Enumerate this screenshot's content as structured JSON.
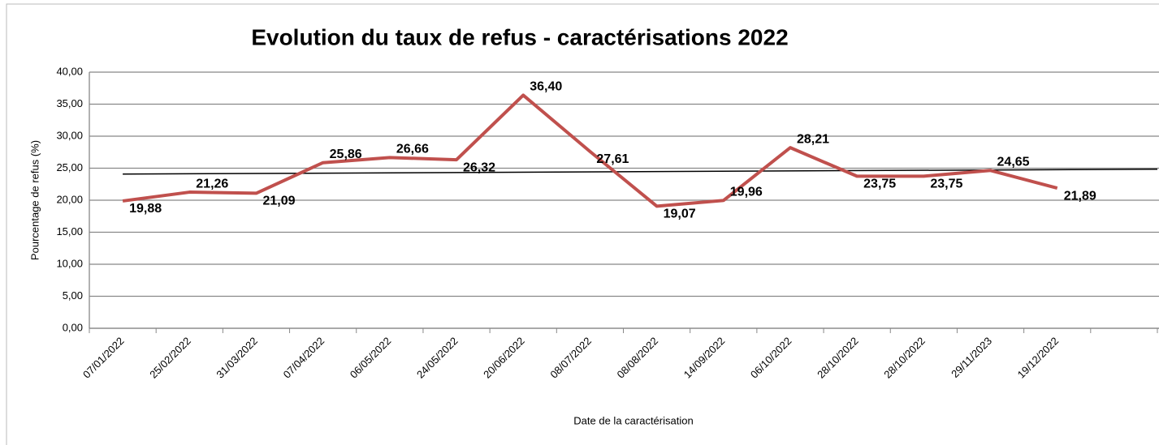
{
  "chart_data": {
    "type": "line",
    "title": "Evolution du taux de refus - caractérisations 2022",
    "x_label": "Date de la caractérisation",
    "y_label": "Pourcentage de refus (%)",
    "categories": [
      "07/01/2022",
      "25/02/2022",
      "31/03/2022",
      "07/04/2022",
      "06/05/2022",
      "24/05/2022",
      "20/06/2022",
      "08/07/2022",
      "08/08/2022",
      "14/09/2022",
      "06/10/2022",
      "28/10/2022",
      "28/10/2022",
      "29/11/2023",
      "19/12/2022",
      null
    ],
    "values": [
      19.88,
      21.26,
      21.09,
      25.86,
      26.66,
      26.32,
      36.4,
      27.61,
      19.07,
      19.96,
      28.21,
      23.75,
      23.75,
      24.65,
      21.89,
      null
    ],
    "value_labels": [
      "19,88",
      "21,26",
      "21,09",
      "25,86",
      "26,66",
      "26,32",
      "36,40",
      "27,61",
      "19,07",
      "19,96",
      "28,21",
      "23,75",
      "23,75",
      "24,65",
      "21,89",
      null
    ],
    "color": "#c0504d",
    "trendline": true,
    "trendline_color": "#000000",
    "ylim": [
      0,
      40
    ],
    "yticks": [
      {
        "value": 0,
        "label": "0,00"
      },
      {
        "value": 5,
        "label": "5,00"
      },
      {
        "value": 10,
        "label": "10,00"
      },
      {
        "value": 15,
        "label": "15,00"
      },
      {
        "value": 20,
        "label": "20,00"
      },
      {
        "value": 25,
        "label": "25,00"
      },
      {
        "value": 30,
        "label": "30,00"
      },
      {
        "value": 35,
        "label": "35,00"
      },
      {
        "value": 40,
        "label": "40,00"
      }
    ],
    "grid": true
  }
}
